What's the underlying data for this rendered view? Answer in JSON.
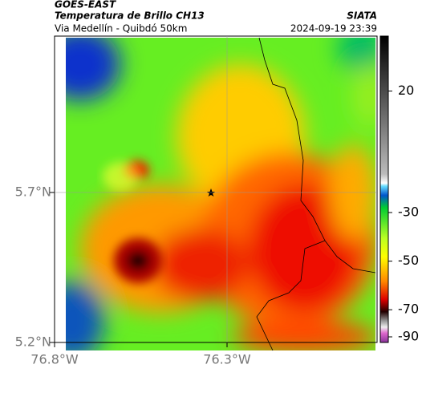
{
  "header": {
    "source": "GOES-EAST",
    "title": "Temperatura de Brillo CH13",
    "subtitle": "Via Medellín - Quibdó 50km",
    "agency": "SIATA",
    "timestamp": "2024-09-19 23:39"
  },
  "map": {
    "lat_ticks": [
      {
        "value": 5.7,
        "label": "5.7°N"
      },
      {
        "value": 5.2,
        "label": "5.2°N"
      }
    ],
    "lon_ticks": [
      {
        "value": -76.8,
        "label": "76.8°W"
      },
      {
        "value": -76.3,
        "label": "76.3°W"
      }
    ]
  },
  "colorbar": {
    "ticks": [
      20,
      -30,
      -50,
      -70,
      -90
    ]
  }
}
